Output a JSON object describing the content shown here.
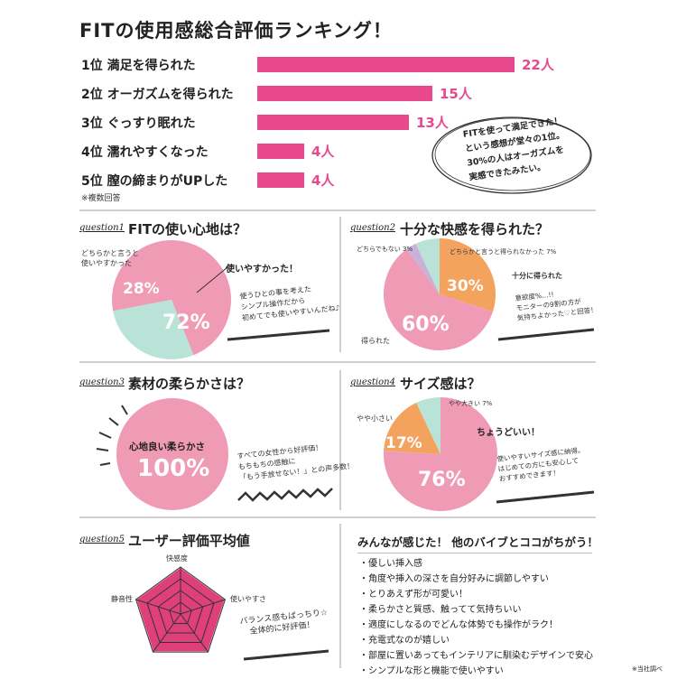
{
  "page_title": "FITの使用感総合評価ランキング！",
  "colors": {
    "pink": "#e8488c",
    "pie_pink": "#f09bb5",
    "mint": "#b9e3d6",
    "orange": "#f4a35f",
    "purple": "#c8b2d8",
    "radar": "#e0407a"
  },
  "ranking": {
    "note": "※複数回答",
    "items": [
      {
        "label": "1位  満足を得られた",
        "value": 22,
        "value_label": "22人"
      },
      {
        "label": "2位  オーガズムを得られた",
        "value": 15,
        "value_label": "15人"
      },
      {
        "label": "3位  ぐっすり眠れた",
        "value": 13,
        "value_label": "13人"
      },
      {
        "label": "4位  濡れやすくなった",
        "value": 4,
        "value_label": "4人"
      },
      {
        "label": "5位  膣の締まりがUPした",
        "value": 4,
        "value_label": "4人"
      }
    ],
    "bubble": [
      "FITを使って満足できた！",
      "という感想が堂々の1位。",
      "30%の人はオーガズムを",
      "実感できたみたい。"
    ]
  },
  "q1": {
    "label": "question1",
    "title": "FITの使い心地は？",
    "slices": [
      {
        "name": "使いやすかった！",
        "pct_label": "72%",
        "value": 72
      },
      {
        "name": "どちらかと言うと\n使いやすかった",
        "pct_label": "28%",
        "value": 28
      }
    ],
    "label_a1": "どちらかと言うと",
    "label_a2": "使いやすかった",
    "label_b": "使いやすかった！",
    "comment": [
      "使うひとの事を考えた",
      "シンプル操作だから",
      "初めてでも使いやすいんだね♪"
    ]
  },
  "q2": {
    "label": "question2",
    "title": "十分な快感を得られた？",
    "slices": [
      {
        "name": "得られた",
        "pct_label": "60%",
        "value": 60
      },
      {
        "name": "十分に得られた",
        "pct_label": "30%",
        "value": 30
      },
      {
        "name": "どちらかと言うと得られなかった",
        "pct_label": "7%",
        "value": 7
      },
      {
        "name": "どちらでもない",
        "pct_label": "3%",
        "value": 3
      }
    ],
    "l_neither": "どちらでもない 3%",
    "l_rather": "どちらかと言うと得られなかった 7%",
    "l_enough": "十分に得られた",
    "l_got": "得られた",
    "comment": [
      "意欲度%…!!",
      "モニターの9割の方が",
      "気持ちよかった♡と回答！"
    ]
  },
  "q3": {
    "label": "question3",
    "title": "素材の柔らかさは？",
    "circle_label": "心地良い柔らかさ",
    "pct_label": "100%",
    "comment": [
      "すべての女性から好評価！",
      "もちもちの感触に",
      "「もう手放せない！」との声多数！"
    ]
  },
  "q4": {
    "label": "question4",
    "title": "サイズ感は？",
    "slices": [
      {
        "name": "ちょうどいい！",
        "pct_label": "76%",
        "value": 76
      },
      {
        "name": "やや小さい",
        "pct_label": "17%",
        "value": 17
      },
      {
        "name": "やや大きい",
        "pct_label": "7%",
        "value": 7
      }
    ],
    "l_big": "やや大きい 7%",
    "l_small": "やや小さい",
    "l_just": "ちょうどいい！",
    "comment": [
      "使いやすいサイズ感に納得。",
      "はじめての方にも安心して",
      "おすすめできます！"
    ]
  },
  "q5": {
    "label": "question5",
    "title": "ユーザー評価平均値",
    "axes": [
      "快感度",
      "使いやすさ",
      "",
      "",
      "静音性"
    ],
    "comment": [
      "バランス感もばっちり☆",
      "全体的に好評価！"
    ]
  },
  "summary": {
    "title": "みんなが感じた！ 他のバイブとココがちがう！",
    "bullets": [
      "・優しい挿入感",
      "・角度や挿入の深さを自分好みに調節しやすい",
      "・とりあえず形が可愛い！",
      "・柔らかさと質感、触ってて気持ちいい",
      "・適度にしなるのでどんな体勢でも操作がラク！",
      "・充電式なのが嬉しい",
      "・部屋に置いあってもインテリアに馴染むデザインで安心",
      "・シンプルな形と機能で使いやすい"
    ],
    "credit": "※当社調べ"
  }
}
